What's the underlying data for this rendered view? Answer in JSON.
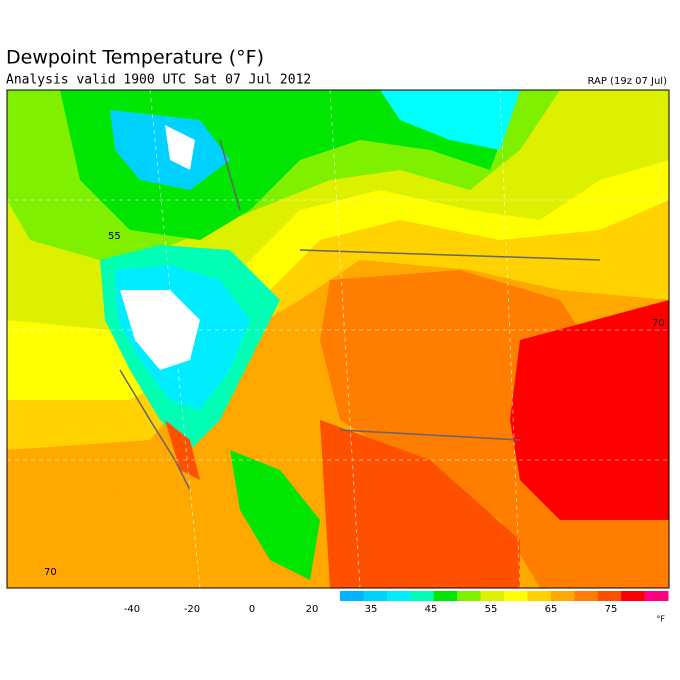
{
  "header": {
    "title": "Dewpoint Temperature (°F)",
    "subtitle": "Analysis valid 1900 UTC Sat 07 Jul 2012",
    "model": "RAP (19z 07 Jul)"
  },
  "map": {
    "contour_labels": [
      "55",
      "70",
      "70"
    ]
  },
  "colorbar": {
    "left_ticks": [
      -40,
      -20,
      0,
      20
    ],
    "ticks": [
      35,
      45,
      55,
      65,
      75
    ],
    "colors": [
      "#00b4ff",
      "#00d2ff",
      "#00ecff",
      "#00ffb4",
      "#00e600",
      "#7ef000",
      "#dcf000",
      "#ffff00",
      "#ffd200",
      "#ffa800",
      "#ff7e00",
      "#ff5000",
      "#ff0000",
      "#ff0080"
    ],
    "unit": "°F"
  }
}
